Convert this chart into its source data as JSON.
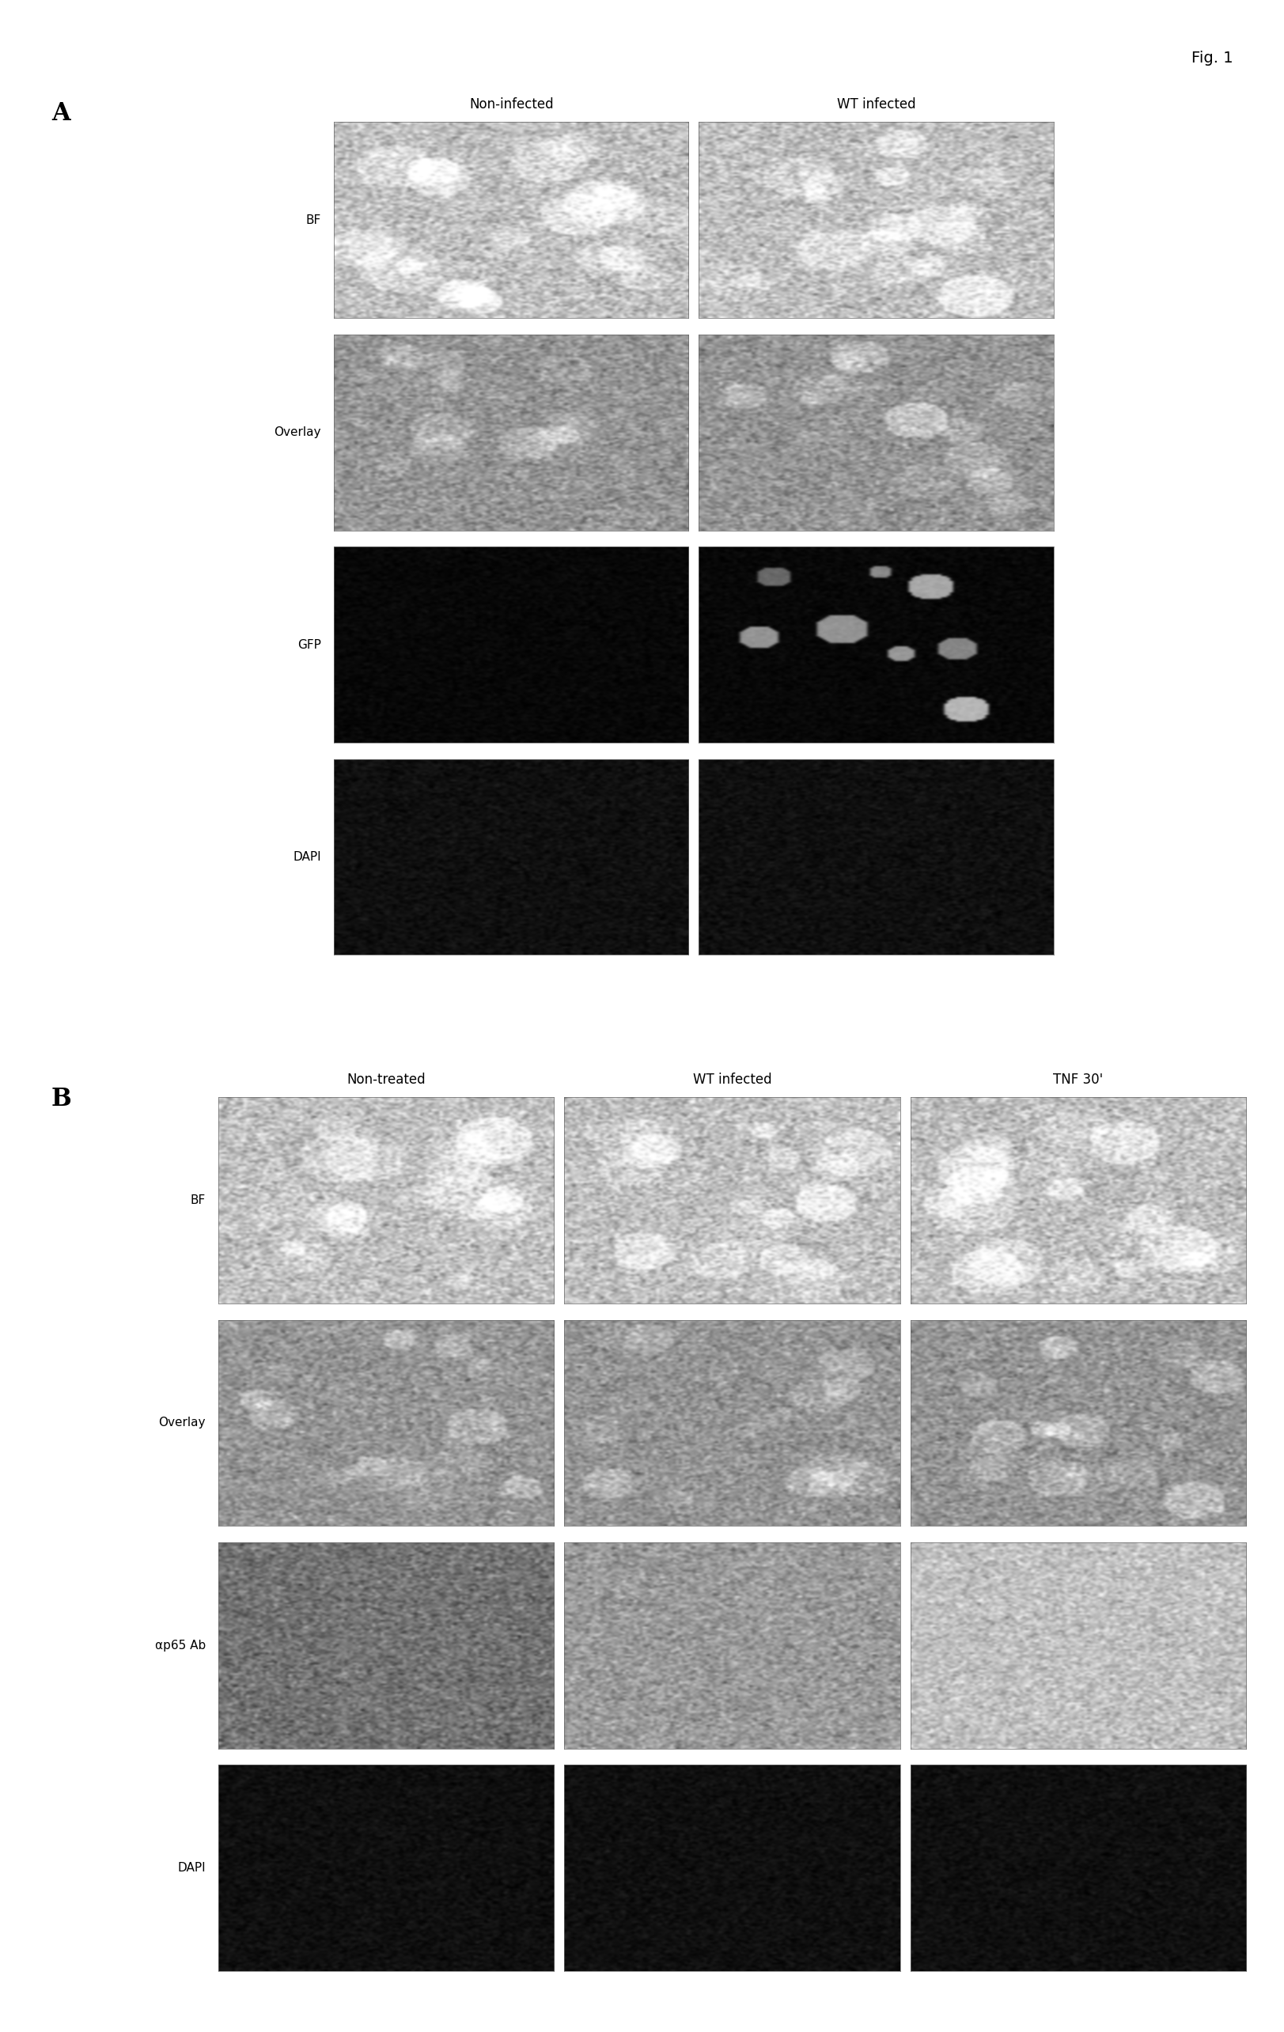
{
  "fig_label": "Fig. 1",
  "panel_A_label": "A",
  "panel_B_label": "B",
  "panel_A_col_labels": [
    "Non-infected",
    "WT infected"
  ],
  "panel_A_row_labels": [
    "BF",
    "Overlay",
    "GFP",
    "DAPI"
  ],
  "panel_B_col_labels": [
    "Non-treated",
    "WT infected",
    "TNF 30'"
  ],
  "panel_B_row_labels": [
    "BF",
    "Overlay",
    "αp65 Ab",
    "DAPI"
  ],
  "bg_color": "#ffffff",
  "panel_label_fontsize": 22,
  "fig_label_fontsize": 14,
  "col_label_fontsize": 12,
  "row_label_fontsize": 11
}
